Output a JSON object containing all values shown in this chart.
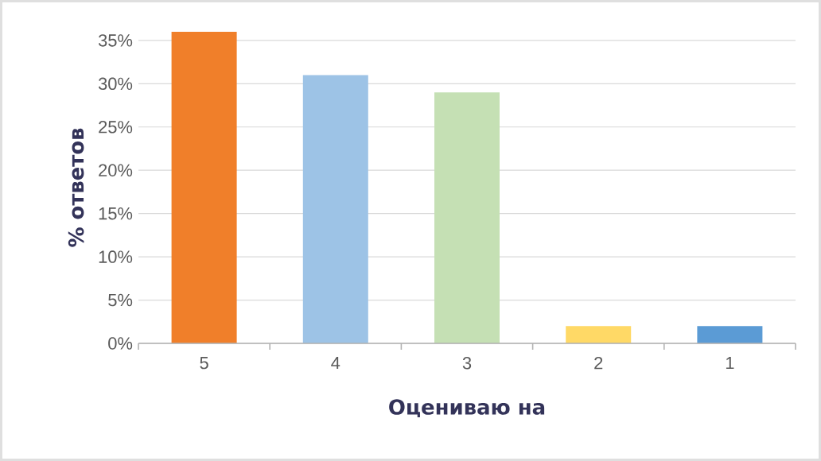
{
  "chart_data": {
    "type": "bar",
    "xlabel": "Оцениваю на",
    "ylabel": "% ответов",
    "categories": [
      "5",
      "4",
      "3",
      "2",
      "1"
    ],
    "values": [
      36,
      31,
      29,
      2,
      2
    ],
    "colors": [
      "#f07f2a",
      "#9dc3e6",
      "#c5e0b4",
      "#ffd966",
      "#5b9bd5"
    ],
    "ylim": [
      0,
      36
    ],
    "yticks": [
      {
        "value": 0,
        "label": "0%"
      },
      {
        "value": 5,
        "label": "5%"
      },
      {
        "value": 10,
        "label": "10%"
      },
      {
        "value": 15,
        "label": "15%"
      },
      {
        "value": 20,
        "label": "20%"
      },
      {
        "value": 25,
        "label": "25%"
      },
      {
        "value": 30,
        "label": "30%"
      },
      {
        "value": 35,
        "label": "35%"
      }
    ],
    "grid": "y"
  }
}
